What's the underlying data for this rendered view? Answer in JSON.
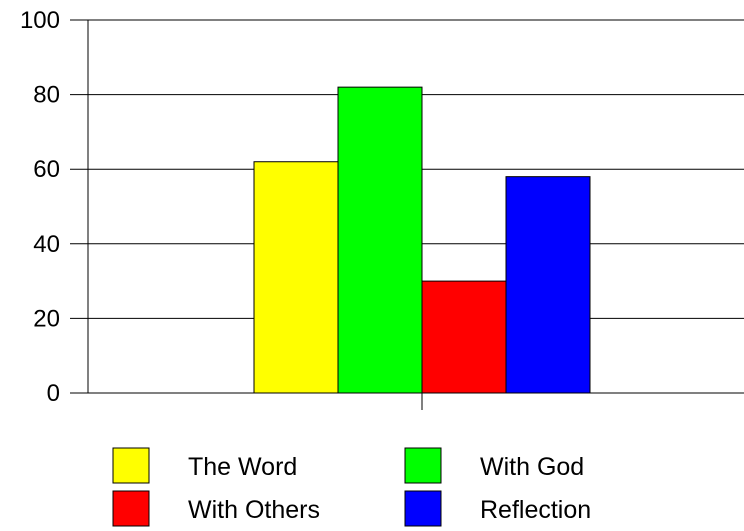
{
  "chart_data": {
    "type": "bar",
    "categories": [
      ""
    ],
    "series": [
      {
        "name": "The Word",
        "values": [
          62
        ],
        "color": "#ffff00"
      },
      {
        "name": "With God",
        "values": [
          82
        ],
        "color": "#00ff00"
      },
      {
        "name": "With Others",
        "values": [
          30
        ],
        "color": "#ff0000"
      },
      {
        "name": "Reflection",
        "values": [
          58
        ],
        "color": "#0000ff"
      }
    ],
    "ylim": [
      0,
      100
    ],
    "yticks": [
      "0",
      "20",
      "40",
      "60",
      "80",
      "100"
    ],
    "grid": "horizontal",
    "legend": "bottom"
  }
}
